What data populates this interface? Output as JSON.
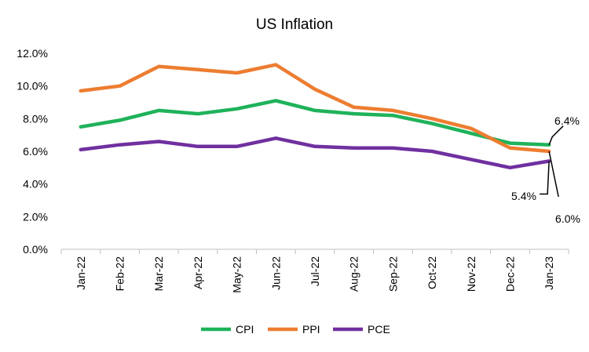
{
  "chart_data": {
    "type": "line",
    "title": "US Inflation",
    "xlabel": "",
    "ylabel": "",
    "categories": [
      "Jan-22",
      "Feb-22",
      "Mar-22",
      "Apr-22",
      "May-22",
      "Jun-22",
      "Jul-22",
      "Aug-22",
      "Sep-22",
      "Oct-22",
      "Nov-22",
      "Dec-22",
      "Jan-23"
    ],
    "y_ticks": [
      "0.0%",
      "2.0%",
      "4.0%",
      "6.0%",
      "8.0%",
      "10.0%",
      "12.0%"
    ],
    "ylim": [
      0,
      12
    ],
    "grid": false,
    "legend_position": "bottom",
    "series": [
      {
        "name": "CPI",
        "color": "#1fb25a",
        "values": [
          7.5,
          7.9,
          8.5,
          8.3,
          8.6,
          9.1,
          8.5,
          8.3,
          8.2,
          7.7,
          7.1,
          6.5,
          6.4
        ]
      },
      {
        "name": "PPI",
        "color": "#ed7d31",
        "values": [
          9.7,
          10.0,
          11.2,
          11.0,
          10.8,
          11.3,
          9.8,
          8.7,
          8.5,
          8.0,
          7.4,
          6.2,
          6.0
        ]
      },
      {
        "name": "PCE",
        "color": "#7030a0",
        "values": [
          6.1,
          6.4,
          6.6,
          6.3,
          6.3,
          6.8,
          6.3,
          6.2,
          6.2,
          6.0,
          5.5,
          5.0,
          5.4
        ]
      }
    ],
    "annotations": [
      {
        "text": "6.4%",
        "series": "CPI"
      },
      {
        "text": "5.4%",
        "series": "PCE"
      },
      {
        "text": "6.0%",
        "series": "PPI"
      }
    ]
  }
}
